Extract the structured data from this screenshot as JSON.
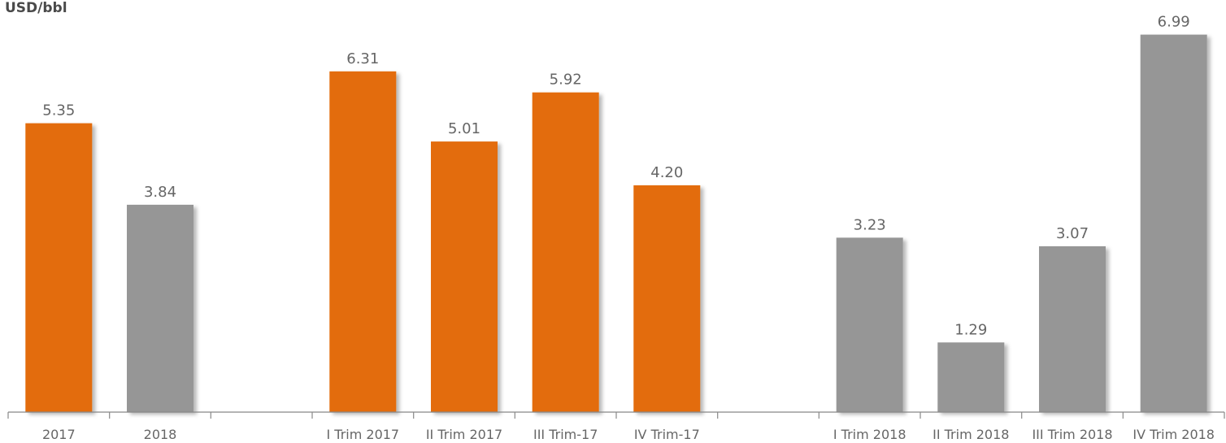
{
  "chart_data": {
    "type": "bar",
    "unit_label": "USD/bbl",
    "title": "",
    "xlabel": "",
    "ylabel": "",
    "categories": [
      "2017",
      "2018",
      "",
      "I Trim 2017",
      "II Trim 2017",
      "III Trim-17",
      "IV Trim-17",
      "",
      "I Trim 2018",
      "II Trim 2018",
      "III Trim 2018",
      "IV Trim 2018"
    ],
    "values": [
      5.35,
      3.84,
      null,
      6.31,
      5.01,
      5.92,
      4.2,
      null,
      3.23,
      1.29,
      3.07,
      6.99
    ],
    "value_labels": [
      "5.35",
      "3.84",
      "",
      "6.31",
      "5.01",
      "5.92",
      "4.20",
      "",
      "3.23",
      "1.29",
      "3.07",
      "6.99"
    ],
    "bar_colors": [
      "#e36c0a",
      "#969696",
      "",
      "#e36c0a",
      "#e36c0a",
      "#e36c0a",
      "#e36c0a",
      "",
      "#969696",
      "#969696",
      "#969696",
      "#969696"
    ],
    "ylim": [
      0,
      7.3
    ],
    "grid": false,
    "legend": "none"
  }
}
